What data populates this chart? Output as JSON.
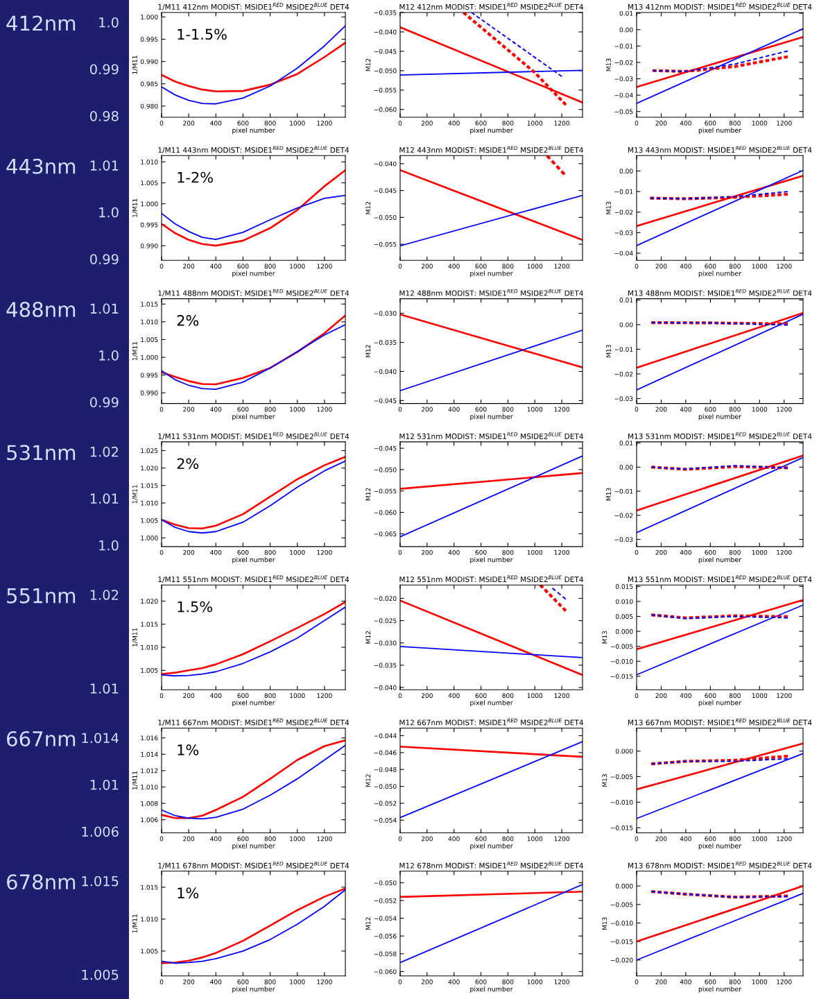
{
  "chart_data": [
    {
      "type": "line",
      "title": "1/M11 412nm MODIST: MSIDE1$^{RED}$ MSIDE2$^{BLUE}$ DET4",
      "xlabel": "pixel number",
      "ylabel": "1/M11",
      "annotations": [
        "412nm",
        "1.0",
        "0.99",
        "0.98",
        "1-1.5%"
      ],
      "x": [
        0,
        100,
        200,
        300,
        400,
        600,
        800,
        1000,
        1200,
        1354
      ],
      "xlim": [
        0,
        1354
      ],
      "xticks": [
        0,
        200,
        400,
        600,
        800,
        1000,
        1200
      ],
      "ylim": [
        0.9775,
        1.001
      ],
      "yticks": [
        {
          "value": 0.98,
          "label": "0.980"
        },
        {
          "value": 0.985,
          "label": "0.985"
        },
        {
          "value": 0.99,
          "label": "0.990"
        },
        {
          "value": 0.995,
          "label": "0.995"
        },
        {
          "value": 1.0,
          "label": "1.000"
        }
      ],
      "series": [
        {
          "color": "#ff0000",
          "line_style": "solid",
          "values": [
            0.987,
            0.9855,
            0.9845,
            0.9837,
            0.9833,
            0.9834,
            0.9848,
            0.9872,
            0.991,
            0.9942
          ]
        },
        {
          "color": "#0000ff",
          "line_style": "solid",
          "values": [
            0.9843,
            0.9825,
            0.9813,
            0.9806,
            0.9805,
            0.9818,
            0.9845,
            0.9885,
            0.9935,
            0.998
          ]
        }
      ]
    },
    {
      "type": "line",
      "title": "M12 412nm MODIST: MSIDE1$^{RED}$ MSIDE2$^{BLUE}$ DET4",
      "xlabel": "pixel number",
      "ylabel": "M12",
      "x": [
        0,
        1354
      ],
      "xlim": [
        0,
        1354
      ],
      "xticks": [
        0,
        200,
        400,
        600,
        800,
        1000,
        1200
      ],
      "ylim": [
        -0.062,
        -0.035
      ],
      "yticks": [
        {
          "value": -0.06,
          "label": "−0.060"
        },
        {
          "value": -0.055,
          "label": "−0.055"
        },
        {
          "value": -0.05,
          "label": "−0.050"
        },
        {
          "value": -0.045,
          "label": "−0.045"
        },
        {
          "value": -0.04,
          "label": "−0.040"
        },
        {
          "value": -0.035,
          "label": "−0.035"
        }
      ],
      "series": [
        {
          "color": "#ff0000",
          "line_style": "solid",
          "values": [
            -0.0388,
            -0.0582
          ]
        },
        {
          "color": "#0000ff",
          "line_style": "solid",
          "values": [
            -0.0511,
            -0.0499
          ]
        },
        {
          "color": "#ff0000",
          "line_style": "dashed",
          "x": [
            470,
            1000,
            1230
          ],
          "values": [
            -0.035,
            -0.0505,
            -0.0588
          ]
        },
        {
          "color": "#0000ff",
          "line_style": "dashed",
          "x": [
            530,
            1200
          ],
          "values": [
            -0.035,
            -0.0515
          ]
        }
      ]
    },
    {
      "type": "line",
      "title": "M13 412nm MODIST: MSIDE1$^{RED}$ MSIDE2$^{BLUE}$ DET4",
      "xlabel": "pixel number",
      "ylabel": "M13",
      "x": [
        0,
        1354
      ],
      "xlim": [
        0,
        1354
      ],
      "xticks": [
        0,
        200,
        400,
        600,
        800,
        1000,
        1200
      ],
      "ylim": [
        -0.0535,
        0.0105
      ],
      "yticks": [
        {
          "value": -0.05,
          "label": "−0.05"
        },
        {
          "value": -0.04,
          "label": "−0.04"
        },
        {
          "value": -0.03,
          "label": "−0.03"
        },
        {
          "value": -0.02,
          "label": "−0.02"
        },
        {
          "value": -0.01,
          "label": "−0.01"
        },
        {
          "value": 0,
          "label": "0.00"
        },
        {
          "value": 0.01,
          "label": "0.01"
        }
      ],
      "series": [
        {
          "color": "#ff0000",
          "line_style": "solid",
          "values": [
            -0.035,
            -0.0045
          ]
        },
        {
          "color": "#0000ff",
          "line_style": "solid",
          "values": [
            -0.045,
            0.0005
          ]
        },
        {
          "color": "#ff0000",
          "line_style": "dashed",
          "x": [
            130,
            400,
            800,
            1230
          ],
          "values": [
            -0.025,
            -0.0255,
            -0.0225,
            -0.0165
          ]
        },
        {
          "color": "#0000ff",
          "line_style": "dashed",
          "x": [
            130,
            400,
            800,
            1230
          ],
          "values": [
            -0.025,
            -0.0255,
            -0.021,
            -0.013
          ]
        }
      ]
    },
    {
      "type": "line",
      "title": "1/M11 443nm MODIST: MSIDE1$^{RED}$ MSIDE2$^{BLUE}$ DET4",
      "xlabel": "pixel number",
      "ylabel": "1/M11",
      "annotations": [
        "443nm",
        "1.01",
        "1.0",
        "0.99",
        "1-2%"
      ],
      "x": [
        0,
        100,
        200,
        300,
        400,
        600,
        800,
        1000,
        1200,
        1354
      ],
      "xlim": [
        0,
        1354
      ],
      "xticks": [
        0,
        200,
        400,
        600,
        800,
        1000,
        1200
      ],
      "ylim": [
        0.9865,
        1.0115
      ],
      "yticks": [
        {
          "value": 0.99,
          "label": "0.990"
        },
        {
          "value": 0.995,
          "label": "0.995"
        },
        {
          "value": 1.0,
          "label": "1.000"
        },
        {
          "value": 1.005,
          "label": "1.005"
        },
        {
          "value": 1.01,
          "label": "1.010"
        }
      ],
      "series": [
        {
          "color": "#ff0000",
          "line_style": "solid",
          "values": [
            0.9952,
            0.993,
            0.9914,
            0.9904,
            0.99,
            0.9912,
            0.9942,
            0.9985,
            1.0042,
            1.008
          ]
        },
        {
          "color": "#0000ff",
          "line_style": "solid",
          "values": [
            0.9977,
            0.9952,
            0.9934,
            0.992,
            0.9915,
            0.9932,
            0.9962,
            0.999,
            1.0013,
            1.002
          ]
        }
      ]
    },
    {
      "type": "line",
      "title": "M12 443nm MODIST: MSIDE1$^{RED}$ MSIDE2$^{BLUE}$ DET4",
      "xlabel": "pixel number",
      "ylabel": "M12",
      "x": [
        0,
        1354
      ],
      "xlim": [
        0,
        1354
      ],
      "xticks": [
        0,
        200,
        400,
        600,
        800,
        1000,
        1200
      ],
      "ylim": [
        -0.058,
        -0.0385
      ],
      "yticks": [
        {
          "value": -0.055,
          "label": "−0.055"
        },
        {
          "value": -0.05,
          "label": "−0.050"
        },
        {
          "value": -0.045,
          "label": "−0.045"
        },
        {
          "value": -0.04,
          "label": "−0.040"
        }
      ],
      "series": [
        {
          "color": "#ff0000",
          "line_style": "solid",
          "values": [
            -0.0412,
            -0.0542
          ]
        },
        {
          "color": "#0000ff",
          "line_style": "solid",
          "values": [
            -0.0553,
            -0.0459
          ]
        },
        {
          "color": "#ff0000",
          "line_style": "dashed",
          "x": [
            1090,
            1220
          ],
          "values": [
            -0.0385,
            -0.042
          ]
        }
      ]
    },
    {
      "type": "line",
      "title": "M13 443nm MODIST: MSIDE1$^{RED}$ MSIDE2$^{BLUE}$ DET4",
      "xlabel": "pixel number",
      "ylabel": "M13",
      "x": [
        0,
        1354
      ],
      "xlim": [
        0,
        1354
      ],
      "xticks": [
        0,
        200,
        400,
        600,
        800,
        1000,
        1200
      ],
      "ylim": [
        -0.0435,
        0.0075
      ],
      "yticks": [
        {
          "value": -0.04,
          "label": "−0.04"
        },
        {
          "value": -0.03,
          "label": "−0.03"
        },
        {
          "value": -0.02,
          "label": "−0.02"
        },
        {
          "value": -0.01,
          "label": "−0.01"
        },
        {
          "value": 0,
          "label": "0.00"
        }
      ],
      "series": [
        {
          "color": "#ff0000",
          "line_style": "solid",
          "values": [
            -0.0268,
            -0.0023
          ]
        },
        {
          "color": "#0000ff",
          "line_style": "solid",
          "values": [
            -0.0363,
            0.0003
          ]
        },
        {
          "color": "#ff0000",
          "line_style": "dashed",
          "x": [
            110,
            400,
            800,
            1230
          ],
          "values": [
            -0.0132,
            -0.0135,
            -0.0128,
            -0.0113
          ]
        },
        {
          "color": "#0000ff",
          "line_style": "dashed",
          "x": [
            110,
            400,
            800,
            1230
          ],
          "values": [
            -0.0132,
            -0.0135,
            -0.0125,
            -0.01
          ]
        }
      ]
    },
    {
      "type": "line",
      "title": "1/M11 488nm MODIST: MSIDE1$^{RED}$ MSIDE2$^{BLUE}$ DET4",
      "xlabel": "pixel number",
      "ylabel": "1/M11",
      "annotations": [
        "488nm",
        "1.01",
        "1.0",
        "0.99",
        "2%"
      ],
      "x": [
        0,
        100,
        200,
        300,
        400,
        600,
        800,
        1000,
        1200,
        1354
      ],
      "xlim": [
        0,
        1354
      ],
      "xticks": [
        0,
        200,
        400,
        600,
        800,
        1000,
        1200
      ],
      "ylim": [
        0.987,
        1.0165
      ],
      "yticks": [
        {
          "value": 0.99,
          "label": "0.990"
        },
        {
          "value": 0.995,
          "label": "0.995"
        },
        {
          "value": 1.0,
          "label": "1.000"
        },
        {
          "value": 1.005,
          "label": "1.005"
        },
        {
          "value": 1.01,
          "label": "1.010"
        },
        {
          "value": 1.015,
          "label": "1.015"
        }
      ],
      "series": [
        {
          "color": "#ff0000",
          "line_style": "solid",
          "values": [
            0.9958,
            0.9945,
            0.9933,
            0.9925,
            0.9924,
            0.9942,
            0.997,
            1.0015,
            1.0068,
            1.0118
          ]
        },
        {
          "color": "#0000ff",
          "line_style": "solid",
          "values": [
            0.9962,
            0.9937,
            0.9921,
            0.9912,
            0.991,
            0.993,
            0.997,
            1.0016,
            1.0063,
            1.0092
          ]
        }
      ]
    },
    {
      "type": "line",
      "title": "M12 488nm MODIST: MSIDE1$^{RED}$ MSIDE2$^{BLUE}$ DET4",
      "xlabel": "pixel number",
      "ylabel": "M12",
      "x": [
        0,
        1354
      ],
      "xlim": [
        0,
        1354
      ],
      "xticks": [
        0,
        200,
        400,
        600,
        800,
        1000,
        1200
      ],
      "ylim": [
        -0.0455,
        -0.0275
      ],
      "yticks": [
        {
          "value": -0.045,
          "label": "−0.045"
        },
        {
          "value": -0.04,
          "label": "−0.040"
        },
        {
          "value": -0.035,
          "label": "−0.035"
        },
        {
          "value": -0.03,
          "label": "−0.030"
        }
      ],
      "series": [
        {
          "color": "#ff0000",
          "line_style": "solid",
          "values": [
            -0.0302,
            -0.0393
          ]
        },
        {
          "color": "#0000ff",
          "line_style": "solid",
          "values": [
            -0.0433,
            -0.0329
          ]
        }
      ]
    },
    {
      "type": "line",
      "title": "M13 488nm MODIST: MSIDE1$^{RED}$ MSIDE2$^{BLUE}$ DET4",
      "xlabel": "pixel number",
      "ylabel": "M13",
      "x": [
        0,
        1354
      ],
      "xlim": [
        0,
        1354
      ],
      "xticks": [
        0,
        200,
        400,
        600,
        800,
        1000,
        1200
      ],
      "ylim": [
        -0.032,
        0.0105
      ],
      "yticks": [
        {
          "value": -0.03,
          "label": "−0.03"
        },
        {
          "value": -0.02,
          "label": "−0.02"
        },
        {
          "value": -0.01,
          "label": "−0.01"
        },
        {
          "value": 0,
          "label": "0.00"
        },
        {
          "value": 0.01,
          "label": "0.01"
        }
      ],
      "series": [
        {
          "color": "#ff0000",
          "line_style": "solid",
          "values": [
            -0.0175,
            0.0047
          ]
        },
        {
          "color": "#0000ff",
          "line_style": "solid",
          "values": [
            -0.0265,
            0.0042
          ]
        },
        {
          "color": "#ff0000",
          "line_style": "dashed",
          "x": [
            120,
            600,
            1230
          ],
          "values": [
            0.0008,
            0.0007,
            0.0003
          ]
        },
        {
          "color": "#0000ff",
          "line_style": "dashed",
          "x": [
            120,
            600,
            1230
          ],
          "values": [
            0.0008,
            0.0007,
            -0.0002
          ]
        }
      ]
    },
    {
      "type": "line",
      "title": "1/M11 531nm MODIST: MSIDE1$^{RED}$ MSIDE2$^{BLUE}$ DET4",
      "xlabel": "pixel number",
      "ylabel": "1/M11",
      "annotations": [
        "531nm",
        "1.02",
        "1.01",
        "1.0",
        "2%"
      ],
      "x": [
        0,
        100,
        200,
        300,
        400,
        600,
        800,
        1000,
        1200,
        1354
      ],
      "xlim": [
        0,
        1354
      ],
      "xticks": [
        0,
        200,
        400,
        600,
        800,
        1000,
        1200
      ],
      "ylim": [
        0.9975,
        1.0275
      ],
      "yticks": [
        {
          "value": 1.0,
          "label": "1.000"
        },
        {
          "value": 1.005,
          "label": "1.005"
        },
        {
          "value": 1.01,
          "label": "1.010"
        },
        {
          "value": 1.015,
          "label": "1.015"
        },
        {
          "value": 1.02,
          "label": "1.020"
        },
        {
          "value": 1.025,
          "label": "1.025"
        }
      ],
      "series": [
        {
          "color": "#ff0000",
          "line_style": "solid",
          "values": [
            1.0052,
            1.0038,
            1.0028,
            1.0027,
            1.0035,
            1.0068,
            1.0118,
            1.0168,
            1.0208,
            1.0232
          ]
        },
        {
          "color": "#0000ff",
          "line_style": "solid",
          "values": [
            1.0052,
            1.003,
            1.0018,
            1.0014,
            1.0018,
            1.0045,
            1.0092,
            1.0145,
            1.0192,
            1.022
          ]
        }
      ]
    },
    {
      "type": "line",
      "title": "M12 531nm MODIST: MSIDE1$^{RED}$ MSIDE2$^{BLUE}$ DET4",
      "xlabel": "pixel number",
      "ylabel": "M12",
      "x": [
        0,
        1354
      ],
      "xlim": [
        0,
        1354
      ],
      "xticks": [
        0,
        200,
        400,
        600,
        800,
        1000,
        1200
      ],
      "ylim": [
        -0.068,
        -0.0435
      ],
      "yticks": [
        {
          "value": -0.065,
          "label": "−0.065"
        },
        {
          "value": -0.06,
          "label": "−0.060"
        },
        {
          "value": -0.055,
          "label": "−0.055"
        },
        {
          "value": -0.05,
          "label": "−0.050"
        },
        {
          "value": -0.045,
          "label": "−0.045"
        }
      ],
      "series": [
        {
          "color": "#ff0000",
          "line_style": "solid",
          "values": [
            -0.0545,
            -0.0508
          ]
        },
        {
          "color": "#0000ff",
          "line_style": "solid",
          "values": [
            -0.0657,
            -0.0468
          ]
        }
      ]
    },
    {
      "type": "line",
      "title": "M13 531nm MODIST: MSIDE1$^{RED}$ MSIDE2$^{BLUE}$ DET4",
      "xlabel": "pixel number",
      "ylabel": "M13",
      "x": [
        0,
        1354
      ],
      "xlim": [
        0,
        1354
      ],
      "xticks": [
        0,
        200,
        400,
        600,
        800,
        1000,
        1200
      ],
      "ylim": [
        -0.033,
        0.0105
      ],
      "yticks": [
        {
          "value": -0.03,
          "label": "−0.03"
        },
        {
          "value": -0.02,
          "label": "−0.02"
        },
        {
          "value": -0.01,
          "label": "−0.01"
        },
        {
          "value": 0,
          "label": "0.00"
        },
        {
          "value": 0.01,
          "label": "0.01"
        }
      ],
      "series": [
        {
          "color": "#ff0000",
          "line_style": "solid",
          "values": [
            -0.018,
            0.0048
          ]
        },
        {
          "color": "#0000ff",
          "line_style": "solid",
          "values": [
            -0.0272,
            0.004
          ]
        },
        {
          "color": "#ff0000",
          "line_style": "dashed",
          "x": [
            120,
            400,
            800,
            1230
          ],
          "values": [
            0.0,
            -0.0009,
            0.0002,
            -0.0003
          ]
        },
        {
          "color": "#0000ff",
          "line_style": "dashed",
          "x": [
            120,
            400,
            800,
            1230
          ],
          "values": [
            0.0,
            -0.0008,
            0.0006,
            -0.0004
          ]
        }
      ]
    },
    {
      "type": "line",
      "title": "1/M11 551nm MODIST: MSIDE1$^{RED}$ MSIDE2$^{BLUE}$ DET4",
      "xlabel": "pixel number",
      "ylabel": "1/M11",
      "annotations": [
        "551nm",
        "1.02",
        "1.01",
        "1.5%"
      ],
      "x": [
        0,
        100,
        200,
        300,
        400,
        600,
        800,
        1000,
        1200,
        1354
      ],
      "xlim": [
        0,
        1354
      ],
      "xticks": [
        0,
        200,
        400,
        600,
        800,
        1000,
        1200
      ],
      "ylim": [
        1.0008,
        1.0235
      ],
      "yticks": [
        {
          "value": 1.005,
          "label": "1.005"
        },
        {
          "value": 1.01,
          "label": "1.010"
        },
        {
          "value": 1.015,
          "label": "1.015"
        },
        {
          "value": 1.02,
          "label": "1.020"
        }
      ],
      "series": [
        {
          "color": "#ff0000",
          "line_style": "solid",
          "values": [
            1.0042,
            1.0045,
            1.005,
            1.0055,
            1.0063,
            1.0085,
            1.0113,
            1.0142,
            1.0172,
            1.0198
          ]
        },
        {
          "color": "#0000ff",
          "line_style": "solid",
          "values": [
            1.004,
            1.0038,
            1.0039,
            1.0042,
            1.0047,
            1.0065,
            1.009,
            1.012,
            1.0158,
            1.0187
          ]
        }
      ]
    },
    {
      "type": "line",
      "title": "M12 551nm MODIST: MSIDE1$^{RED}$ MSIDE2$^{BLUE}$ DET4",
      "xlabel": "pixel number",
      "ylabel": "M12",
      "x": [
        0,
        1354
      ],
      "xlim": [
        0,
        1354
      ],
      "xticks": [
        0,
        200,
        400,
        600,
        800,
        1000,
        1200
      ],
      "ylim": [
        -0.0405,
        -0.017
      ],
      "yticks": [
        {
          "value": -0.04,
          "label": "−0.040"
        },
        {
          "value": -0.035,
          "label": "−0.035"
        },
        {
          "value": -0.03,
          "label": "−0.030"
        },
        {
          "value": -0.025,
          "label": "−0.025"
        },
        {
          "value": -0.02,
          "label": "−0.020"
        }
      ],
      "series": [
        {
          "color": "#ff0000",
          "line_style": "solid",
          "values": [
            -0.0205,
            -0.0372
          ]
        },
        {
          "color": "#0000ff",
          "line_style": "solid",
          "values": [
            -0.0308,
            -0.0333
          ]
        },
        {
          "color": "#ff0000",
          "line_style": "dashed",
          "x": [
            1040,
            1230
          ],
          "values": [
            -0.017,
            -0.0228
          ]
        },
        {
          "color": "#0000ff",
          "line_style": "dashed",
          "x": [
            1130,
            1230
          ],
          "values": [
            -0.0177,
            -0.0202
          ]
        }
      ]
    },
    {
      "type": "line",
      "title": "M13 551nm MODIST: MSIDE1$^{RED}$ MSIDE2$^{BLUE}$ DET4",
      "xlabel": "pixel number",
      "ylabel": "M13",
      "x": [
        0,
        1354
      ],
      "xlim": [
        0,
        1354
      ],
      "xticks": [
        0,
        200,
        400,
        600,
        800,
        1000,
        1200
      ],
      "ylim": [
        -0.0195,
        0.0155
      ],
      "yticks": [
        {
          "value": -0.015,
          "label": "−0.015"
        },
        {
          "value": -0.01,
          "label": "−0.010"
        },
        {
          "value": -0.005,
          "label": "−0.005"
        },
        {
          "value": 0,
          "label": "0.000"
        },
        {
          "value": 0.005,
          "label": "0.005"
        },
        {
          "value": 0.01,
          "label": "0.010"
        },
        {
          "value": 0.015,
          "label": "0.015"
        }
      ],
      "series": [
        {
          "color": "#ff0000",
          "line_style": "solid",
          "values": [
            -0.006,
            0.0105
          ]
        },
        {
          "color": "#0000ff",
          "line_style": "solid",
          "values": [
            -0.0145,
            0.0088
          ]
        },
        {
          "color": "#ff0000",
          "line_style": "dashed",
          "x": [
            120,
            400,
            800,
            1230
          ],
          "values": [
            0.0055,
            0.0045,
            0.0052,
            0.0049
          ]
        },
        {
          "color": "#0000ff",
          "line_style": "dashed",
          "x": [
            120,
            400,
            800,
            1230
          ],
          "values": [
            0.0055,
            0.0043,
            0.005,
            0.0045
          ]
        }
      ]
    },
    {
      "type": "line",
      "title": "1/M11 667nm MODIST: MSIDE1$^{RED}$ MSIDE2$^{BLUE}$ DET4",
      "xlabel": "pixel number",
      "ylabel": "1/M11",
      "annotations": [
        "667nm",
        "1.014",
        "1.01",
        "1.006",
        "1%"
      ],
      "x": [
        0,
        100,
        200,
        300,
        400,
        600,
        800,
        1000,
        1200,
        1354
      ],
      "xlim": [
        0,
        1354
      ],
      "xticks": [
        0,
        200,
        400,
        600,
        800,
        1000,
        1200
      ],
      "ylim": [
        1.0044,
        1.0172
      ],
      "yticks": [
        {
          "value": 1.006,
          "label": "1.006"
        },
        {
          "value": 1.008,
          "label": "1.008"
        },
        {
          "value": 1.01,
          "label": "1.010"
        },
        {
          "value": 1.012,
          "label": "1.012"
        },
        {
          "value": 1.014,
          "label": "1.014"
        },
        {
          "value": 1.016,
          "label": "1.016"
        }
      ],
      "series": [
        {
          "color": "#ff0000",
          "line_style": "solid",
          "values": [
            1.0066,
            1.0062,
            1.0062,
            1.0065,
            1.0072,
            1.0088,
            1.011,
            1.0133,
            1.015,
            1.0157
          ]
        },
        {
          "color": "#0000ff",
          "line_style": "solid",
          "values": [
            1.0072,
            1.0065,
            1.0062,
            1.0061,
            1.0063,
            1.0073,
            1.009,
            1.011,
            1.0133,
            1.0151
          ]
        }
      ]
    },
    {
      "type": "line",
      "title": "M12 667nm MODIST: MSIDE1$^{RED}$ MSIDE2$^{BLUE}$ DET4",
      "xlabel": "pixel number",
      "ylabel": "M12",
      "x": [
        0,
        1354
      ],
      "xlim": [
        0,
        1354
      ],
      "xticks": [
        0,
        200,
        400,
        600,
        800,
        1000,
        1200
      ],
      "ylim": [
        -0.0555,
        -0.0431
      ],
      "yticks": [
        {
          "value": -0.054,
          "label": "−0.054"
        },
        {
          "value": -0.052,
          "label": "−0.052"
        },
        {
          "value": -0.05,
          "label": "−0.050"
        },
        {
          "value": -0.048,
          "label": "−0.048"
        },
        {
          "value": -0.046,
          "label": "−0.046"
        },
        {
          "value": -0.044,
          "label": "−0.044"
        }
      ],
      "series": [
        {
          "color": "#ff0000",
          "line_style": "solid",
          "values": [
            -0.0453,
            -0.0465
          ]
        },
        {
          "color": "#0000ff",
          "line_style": "solid",
          "values": [
            -0.0537,
            -0.0447
          ]
        }
      ]
    },
    {
      "type": "line",
      "title": "M13 667nm MODIST: MSIDE1$^{RED}$ MSIDE2$^{BLUE}$ DET4",
      "xlabel": "pixel number",
      "ylabel": "M13",
      "x": [
        0,
        1354
      ],
      "xlim": [
        0,
        1354
      ],
      "xticks": [
        0,
        200,
        400,
        600,
        800,
        1000,
        1200
      ],
      "ylim": [
        -0.016,
        0.0045
      ],
      "yticks": [
        {
          "value": -0.015,
          "label": "−0.015"
        },
        {
          "value": -0.01,
          "label": "−0.010"
        },
        {
          "value": -0.005,
          "label": "−0.005"
        },
        {
          "value": 0,
          "label": "0.000"
        }
      ],
      "series": [
        {
          "color": "#ff0000",
          "line_style": "solid",
          "values": [
            -0.0075,
            0.0015
          ]
        },
        {
          "color": "#0000ff",
          "line_style": "solid",
          "values": [
            -0.0132,
            -0.0005
          ]
        },
        {
          "color": "#ff0000",
          "line_style": "dashed",
          "x": [
            120,
            400,
            800,
            1230
          ],
          "values": [
            -0.0025,
            -0.002,
            -0.0018,
            -0.001
          ]
        },
        {
          "color": "#0000ff",
          "line_style": "dashed",
          "x": [
            120,
            400,
            800,
            1230
          ],
          "values": [
            -0.0025,
            -0.002,
            -0.002,
            -0.0015
          ]
        }
      ]
    },
    {
      "type": "line",
      "title": "1/M11 678nm MODIST: MSIDE1$^{RED}$ MSIDE2$^{BLUE}$ DET4",
      "xlabel": "pixel number",
      "ylabel": "1/M11",
      "annotations": [
        "678nm",
        "1.015",
        "1.005",
        "1%"
      ],
      "x": [
        0,
        100,
        200,
        300,
        400,
        600,
        800,
        1000,
        1200,
        1354
      ],
      "xlim": [
        0,
        1354
      ],
      "xticks": [
        0,
        200,
        400,
        600,
        800,
        1000,
        1200
      ],
      "ylim": [
        1.0011,
        1.0175
      ],
      "yticks": [
        {
          "value": 1.005,
          "label": "1.005"
        },
        {
          "value": 1.01,
          "label": "1.010"
        },
        {
          "value": 1.015,
          "label": "1.015"
        }
      ],
      "series": [
        {
          "color": "#ff0000",
          "line_style": "solid",
          "values": [
            1.0031,
            1.0032,
            1.0035,
            1.004,
            1.0047,
            1.0066,
            1.009,
            1.0114,
            1.0135,
            1.0148
          ]
        },
        {
          "color": "#0000ff",
          "line_style": "solid",
          "values": [
            1.0034,
            1.0031,
            1.0032,
            1.0034,
            1.0038,
            1.005,
            1.0068,
            1.0092,
            1.012,
            1.0146
          ]
        }
      ]
    },
    {
      "type": "line",
      "title": "M12 678nm MODIST: MSIDE1$^{RED}$ MSIDE2$^{BLUE}$ DET4",
      "xlabel": "pixel number",
      "ylabel": "M12",
      "x": [
        0,
        1354
      ],
      "xlim": [
        0,
        1354
      ],
      "xticks": [
        0,
        200,
        400,
        600,
        800,
        1000,
        1200
      ],
      "ylim": [
        -0.0605,
        -0.0487
      ],
      "yticks": [
        {
          "value": -0.06,
          "label": "−0.060"
        },
        {
          "value": -0.058,
          "label": "−0.058"
        },
        {
          "value": -0.056,
          "label": "−0.056"
        },
        {
          "value": -0.054,
          "label": "−0.054"
        },
        {
          "value": -0.052,
          "label": "−0.052"
        },
        {
          "value": -0.05,
          "label": "−0.050"
        }
      ],
      "series": [
        {
          "color": "#ff0000",
          "line_style": "solid",
          "values": [
            -0.0516,
            -0.051
          ]
        },
        {
          "color": "#0000ff",
          "line_style": "solid",
          "values": [
            -0.059,
            -0.0502
          ]
        }
      ]
    },
    {
      "type": "line",
      "title": "M13 678nm MODIST: MSIDE1$^{RED}$ MSIDE2$^{BLUE}$ DET4",
      "xlabel": "pixel number",
      "ylabel": "M13",
      "x": [
        0,
        1354
      ],
      "xlim": [
        0,
        1354
      ],
      "xticks": [
        0,
        200,
        400,
        600,
        800,
        1000,
        1200
      ],
      "ylim": [
        -0.0243,
        0.004
      ],
      "yticks": [
        {
          "value": -0.02,
          "label": "−0.020"
        },
        {
          "value": -0.015,
          "label": "−0.015"
        },
        {
          "value": -0.01,
          "label": "−0.010"
        },
        {
          "value": -0.005,
          "label": "−0.005"
        },
        {
          "value": 0,
          "label": "0.000"
        }
      ],
      "series": [
        {
          "color": "#ff0000",
          "line_style": "solid",
          "values": [
            -0.015,
            0.0
          ]
        },
        {
          "color": "#0000ff",
          "line_style": "solid",
          "values": [
            -0.02,
            -0.002
          ]
        },
        {
          "color": "#ff0000",
          "line_style": "dashed",
          "x": [
            120,
            400,
            800,
            1230
          ],
          "values": [
            -0.0015,
            -0.0022,
            -0.003,
            -0.0027
          ]
        },
        {
          "color": "#0000ff",
          "line_style": "dashed",
          "x": [
            120,
            400,
            800,
            1230
          ],
          "values": [
            -0.0015,
            -0.0022,
            -0.003,
            -0.0028
          ]
        }
      ]
    }
  ]
}
